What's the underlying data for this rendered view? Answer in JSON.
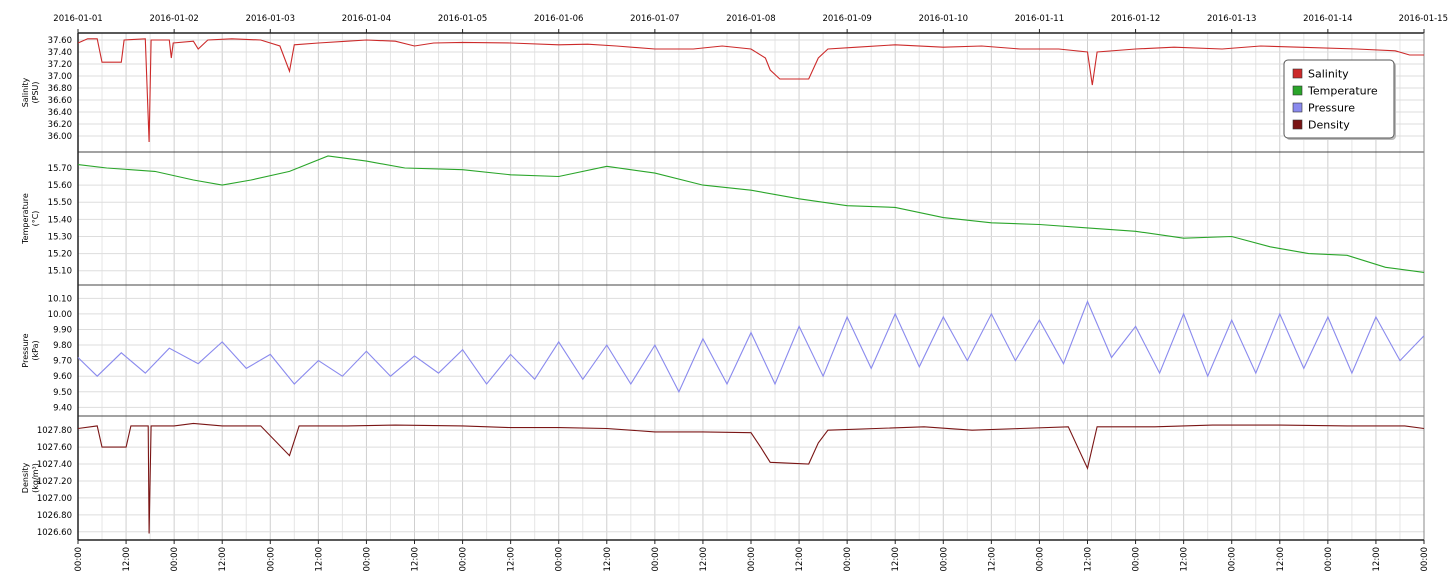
{
  "chart_data": {
    "type": "line",
    "x_type": "datetime",
    "x_range": [
      "2016-01-01 00:00",
      "2016-01-15 00:00"
    ],
    "top_axis_labels": [
      "2016-01-01",
      "2016-01-02",
      "2016-01-03",
      "2016-01-04",
      "2016-01-05",
      "2016-01-06",
      "2016-01-07",
      "2016-01-08",
      "2016-01-09",
      "2016-01-10",
      "2016-01-11",
      "2016-01-12",
      "2016-01-13",
      "2016-01-14",
      "2016-01-15"
    ],
    "bottom_axis_labels": [
      "00:00",
      "12:00",
      "00:00",
      "12:00",
      "00:00",
      "12:00",
      "00:00",
      "12:00",
      "00:00",
      "12:00",
      "00:00",
      "12:00",
      "00:00",
      "12:00",
      "00:00",
      "12:00",
      "00:00",
      "12:00",
      "00:00",
      "12:00",
      "00:00",
      "12:00",
      "00:00",
      "12:00",
      "00:00",
      "12:00",
      "00:00",
      "12:00",
      "00:00"
    ],
    "grid": true,
    "legend": {
      "position": "top-right",
      "entries": [
        {
          "name": "Salinity",
          "color": "#cc2a2a"
        },
        {
          "name": "Temperature",
          "color": "#2aa52a"
        },
        {
          "name": "Pressure",
          "color": "#8a8aee"
        },
        {
          "name": "Density",
          "color": "#7a1515"
        }
      ]
    },
    "panels": [
      {
        "name": "Salinity",
        "ylabel": [
          "Salinity",
          "(PSU)"
        ],
        "ylim": [
          35.8,
          37.65
        ],
        "yticks": [
          36.0,
          36.2,
          36.4,
          36.6,
          36.8,
          37.0,
          37.2,
          37.4,
          37.6
        ],
        "ytick_labels": [
          "36.00",
          "36.20",
          "36.40",
          "36.60",
          "36.80",
          "37.00",
          "37.20",
          "37.40",
          "37.60"
        ],
        "color": "#cc2a2a",
        "points": [
          [
            0,
            37.55
          ],
          [
            0.1,
            37.62
          ],
          [
            0.2,
            37.62
          ],
          [
            0.25,
            37.23
          ],
          [
            0.45,
            37.23
          ],
          [
            0.48,
            37.6
          ],
          [
            0.7,
            37.62
          ],
          [
            0.74,
            35.9
          ],
          [
            0.76,
            37.6
          ],
          [
            0.95,
            37.6
          ],
          [
            0.97,
            37.3
          ],
          [
            0.99,
            37.55
          ],
          [
            1.2,
            37.58
          ],
          [
            1.25,
            37.45
          ],
          [
            1.35,
            37.6
          ],
          [
            1.6,
            37.62
          ],
          [
            1.9,
            37.6
          ],
          [
            2.1,
            37.5
          ],
          [
            2.2,
            37.08
          ],
          [
            2.25,
            37.52
          ],
          [
            2.5,
            37.55
          ],
          [
            2.8,
            37.58
          ],
          [
            3.0,
            37.6
          ],
          [
            3.3,
            37.58
          ],
          [
            3.5,
            37.5
          ],
          [
            3.7,
            37.55
          ],
          [
            4.0,
            37.56
          ],
          [
            4.5,
            37.55
          ],
          [
            5.0,
            37.52
          ],
          [
            5.3,
            37.53
          ],
          [
            5.6,
            37.5
          ],
          [
            6.0,
            37.45
          ],
          [
            6.4,
            37.45
          ],
          [
            6.7,
            37.5
          ],
          [
            7.0,
            37.45
          ],
          [
            7.15,
            37.3
          ],
          [
            7.2,
            37.1
          ],
          [
            7.3,
            36.95
          ],
          [
            7.6,
            36.95
          ],
          [
            7.7,
            37.3
          ],
          [
            7.8,
            37.45
          ],
          [
            8.1,
            37.48
          ],
          [
            8.5,
            37.52
          ],
          [
            9.0,
            37.48
          ],
          [
            9.4,
            37.5
          ],
          [
            9.8,
            37.45
          ],
          [
            10.2,
            37.45
          ],
          [
            10.5,
            37.4
          ],
          [
            10.55,
            36.85
          ],
          [
            10.6,
            37.4
          ],
          [
            11.0,
            37.45
          ],
          [
            11.4,
            37.48
          ],
          [
            11.9,
            37.45
          ],
          [
            12.3,
            37.5
          ],
          [
            12.7,
            37.48
          ],
          [
            13.3,
            37.45
          ],
          [
            13.7,
            37.42
          ],
          [
            13.85,
            37.35
          ],
          [
            14.0,
            37.35
          ]
        ]
      },
      {
        "name": "Temperature",
        "ylabel": [
          "Temperature",
          "(°C)"
        ],
        "ylim": [
          15.04,
          15.77
        ],
        "yticks": [
          15.1,
          15.2,
          15.3,
          15.4,
          15.5,
          15.6,
          15.7
        ],
        "ytick_labels": [
          "15.10",
          "15.20",
          "15.30",
          "15.40",
          "15.50",
          "15.60",
          "15.70"
        ],
        "color": "#2aa52a",
        "points": [
          [
            0,
            15.72
          ],
          [
            0.3,
            15.7
          ],
          [
            0.8,
            15.68
          ],
          [
            1.2,
            15.63
          ],
          [
            1.5,
            15.6
          ],
          [
            1.8,
            15.63
          ],
          [
            2.2,
            15.68
          ],
          [
            2.6,
            15.77
          ],
          [
            3.0,
            15.74
          ],
          [
            3.4,
            15.7
          ],
          [
            4.0,
            15.69
          ],
          [
            4.5,
            15.66
          ],
          [
            5.0,
            15.65
          ],
          [
            5.5,
            15.71
          ],
          [
            6.0,
            15.67
          ],
          [
            6.5,
            15.6
          ],
          [
            7.0,
            15.57
          ],
          [
            7.5,
            15.52
          ],
          [
            8.0,
            15.48
          ],
          [
            8.5,
            15.47
          ],
          [
            9.0,
            15.41
          ],
          [
            9.5,
            15.38
          ],
          [
            10.0,
            15.37
          ],
          [
            10.5,
            15.35
          ],
          [
            11.0,
            15.33
          ],
          [
            11.5,
            15.29
          ],
          [
            12.0,
            15.3
          ],
          [
            12.4,
            15.24
          ],
          [
            12.8,
            15.2
          ],
          [
            13.2,
            15.19
          ],
          [
            13.6,
            15.12
          ],
          [
            14.0,
            15.09
          ]
        ]
      },
      {
        "name": "Pressure",
        "ylabel": [
          "Pressure",
          "(kPa)"
        ],
        "ylim": [
          9.37,
          10.16
        ],
        "yticks": [
          9.4,
          9.5,
          9.6,
          9.7,
          9.8,
          9.9,
          10.0,
          10.1
        ],
        "ytick_labels": [
          "9.40",
          "9.50",
          "9.60",
          "9.70",
          "9.80",
          "9.90",
          "10.00",
          "10.10"
        ],
        "color": "#8a8aee",
        "points": [
          [
            0,
            9.72
          ],
          [
            0.2,
            9.6
          ],
          [
            0.45,
            9.75
          ],
          [
            0.7,
            9.62
          ],
          [
            0.95,
            9.78
          ],
          [
            1.25,
            9.68
          ],
          [
            1.5,
            9.82
          ],
          [
            1.75,
            9.65
          ],
          [
            2.0,
            9.74
          ],
          [
            2.25,
            9.55
          ],
          [
            2.5,
            9.7
          ],
          [
            2.75,
            9.6
          ],
          [
            3.0,
            9.76
          ],
          [
            3.25,
            9.6
          ],
          [
            3.5,
            9.73
          ],
          [
            3.75,
            9.62
          ],
          [
            4.0,
            9.77
          ],
          [
            4.25,
            9.55
          ],
          [
            4.5,
            9.74
          ],
          [
            4.75,
            9.58
          ],
          [
            5.0,
            9.82
          ],
          [
            5.25,
            9.58
          ],
          [
            5.5,
            9.8
          ],
          [
            5.75,
            9.55
          ],
          [
            6.0,
            9.8
          ],
          [
            6.25,
            9.5
          ],
          [
            6.5,
            9.84
          ],
          [
            6.75,
            9.55
          ],
          [
            7.0,
            9.88
          ],
          [
            7.25,
            9.55
          ],
          [
            7.5,
            9.92
          ],
          [
            7.75,
            9.6
          ],
          [
            8.0,
            9.98
          ],
          [
            8.25,
            9.65
          ],
          [
            8.5,
            10.0
          ],
          [
            8.75,
            9.66
          ],
          [
            9.0,
            9.98
          ],
          [
            9.25,
            9.7
          ],
          [
            9.5,
            10.0
          ],
          [
            9.75,
            9.7
          ],
          [
            10.0,
            9.96
          ],
          [
            10.25,
            9.68
          ],
          [
            10.5,
            10.08
          ],
          [
            10.75,
            9.72
          ],
          [
            11.0,
            9.92
          ],
          [
            11.25,
            9.62
          ],
          [
            11.5,
            10.0
          ],
          [
            11.75,
            9.6
          ],
          [
            12.0,
            9.96
          ],
          [
            12.25,
            9.62
          ],
          [
            12.5,
            10.0
          ],
          [
            12.75,
            9.65
          ],
          [
            13.0,
            9.98
          ],
          [
            13.25,
            9.62
          ],
          [
            13.5,
            9.98
          ],
          [
            13.75,
            9.7
          ],
          [
            14.0,
            9.86
          ]
        ]
      },
      {
        "name": "Density",
        "ylabel": [
          "Density",
          "(kg/m³)"
        ],
        "ylim": [
          1026.55,
          1027.92
        ],
        "yticks": [
          1026.6,
          1026.8,
          1027.0,
          1027.2,
          1027.4,
          1027.6,
          1027.8
        ],
        "ytick_labels": [
          "1026.60",
          "1026.80",
          "1027.00",
          "1027.20",
          "1027.40",
          "1027.60",
          "1027.80"
        ],
        "color": "#7a1515",
        "points": [
          [
            0,
            1027.82
          ],
          [
            0.2,
            1027.85
          ],
          [
            0.25,
            1027.6
          ],
          [
            0.5,
            1027.6
          ],
          [
            0.55,
            1027.85
          ],
          [
            0.73,
            1027.85
          ],
          [
            0.74,
            1026.58
          ],
          [
            0.76,
            1027.85
          ],
          [
            1.0,
            1027.85
          ],
          [
            1.2,
            1027.88
          ],
          [
            1.5,
            1027.85
          ],
          [
            1.9,
            1027.85
          ],
          [
            2.2,
            1027.5
          ],
          [
            2.3,
            1027.85
          ],
          [
            2.8,
            1027.85
          ],
          [
            3.3,
            1027.86
          ],
          [
            4.0,
            1027.85
          ],
          [
            4.5,
            1027.83
          ],
          [
            5.0,
            1027.83
          ],
          [
            5.5,
            1027.82
          ],
          [
            6.0,
            1027.78
          ],
          [
            6.5,
            1027.78
          ],
          [
            7.0,
            1027.77
          ],
          [
            7.1,
            1027.6
          ],
          [
            7.2,
            1027.42
          ],
          [
            7.6,
            1027.4
          ],
          [
            7.7,
            1027.65
          ],
          [
            7.8,
            1027.8
          ],
          [
            8.3,
            1027.82
          ],
          [
            8.8,
            1027.84
          ],
          [
            9.3,
            1027.8
          ],
          [
            9.8,
            1027.82
          ],
          [
            10.3,
            1027.84
          ],
          [
            10.5,
            1027.35
          ],
          [
            10.6,
            1027.84
          ],
          [
            11.2,
            1027.84
          ],
          [
            11.8,
            1027.86
          ],
          [
            12.5,
            1027.86
          ],
          [
            13.2,
            1027.85
          ],
          [
            13.8,
            1027.85
          ],
          [
            14.0,
            1027.82
          ]
        ]
      }
    ]
  }
}
